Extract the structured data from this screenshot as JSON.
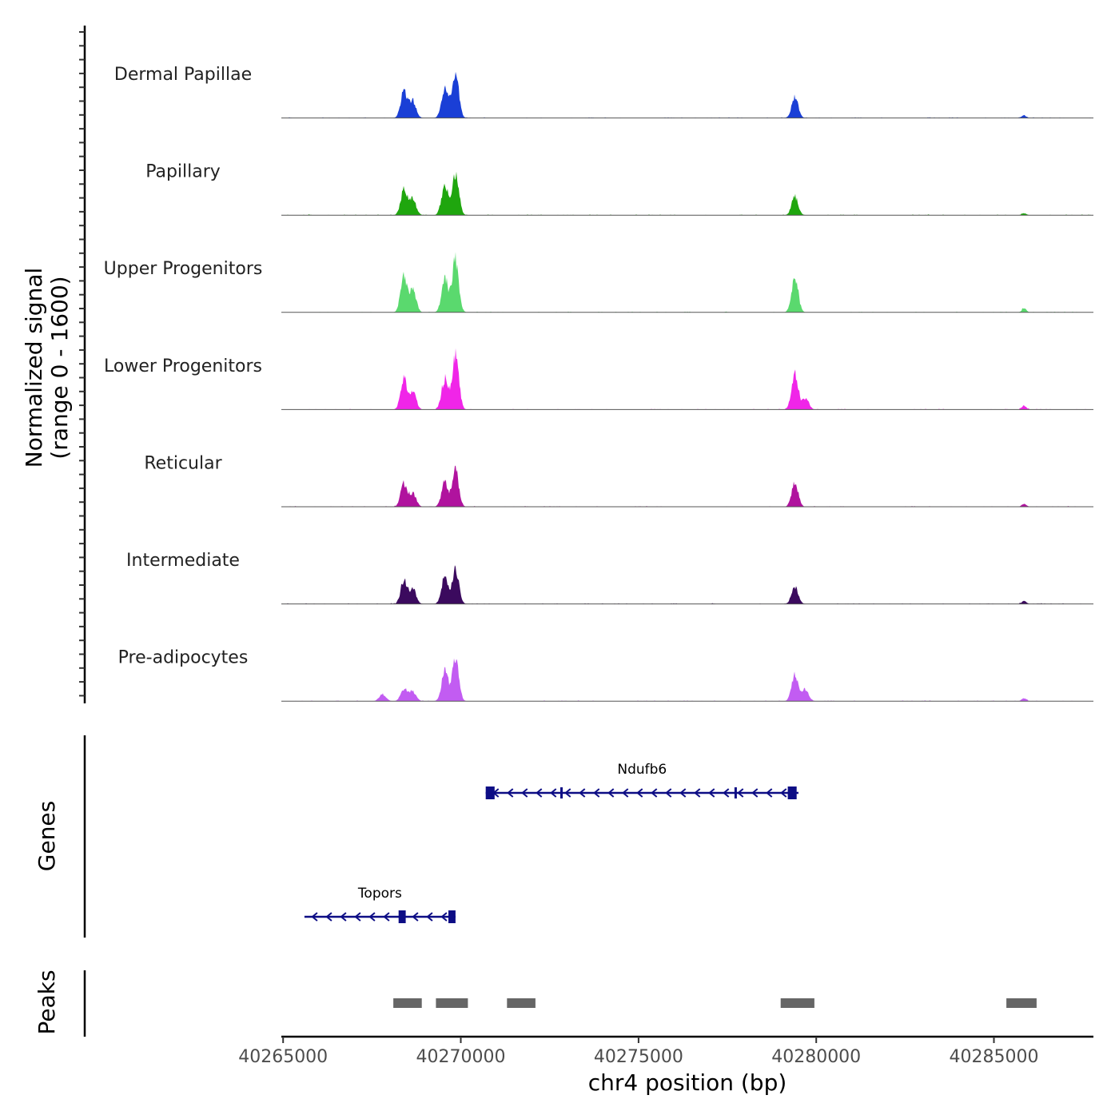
{
  "chart_data": {
    "type": "area",
    "chromosome": "chr4",
    "y_axis_title_line1": "Normalized signal",
    "y_axis_title_line2": "(range 0 - 1600)",
    "y_range": [
      0,
      1600
    ],
    "x_axis_title": "chr4 position (bp)",
    "xlim": [
      40264950,
      40287800
    ],
    "x_ticks": [
      {
        "value": 40265000,
        "label": "40265000"
      },
      {
        "value": 40270000,
        "label": "40270000"
      },
      {
        "value": 40275000,
        "label": "40275000"
      },
      {
        "value": 40280000,
        "label": "40280000"
      },
      {
        "value": 40285000,
        "label": "40285000"
      }
    ],
    "tracks": [
      {
        "name": "Dermal Papillae",
        "color": "#1a3fd6",
        "peaks": [
          {
            "pos": 40268400,
            "height": 600
          },
          {
            "pos": 40268650,
            "height": 380
          },
          {
            "pos": 40269550,
            "height": 700
          },
          {
            "pos": 40269850,
            "height": 1000
          },
          {
            "pos": 40279400,
            "height": 460
          },
          {
            "pos": 40285850,
            "height": 60
          }
        ]
      },
      {
        "name": "Papillary",
        "color": "#1fa60e",
        "peaks": [
          {
            "pos": 40268400,
            "height": 560
          },
          {
            "pos": 40268650,
            "height": 360
          },
          {
            "pos": 40269550,
            "height": 700
          },
          {
            "pos": 40269850,
            "height": 960
          },
          {
            "pos": 40279400,
            "height": 420
          },
          {
            "pos": 40285850,
            "height": 40
          }
        ]
      },
      {
        "name": "Upper Progenitors",
        "color": "#5ad96e",
        "peaks": [
          {
            "pos": 40268400,
            "height": 820
          },
          {
            "pos": 40268650,
            "height": 500
          },
          {
            "pos": 40269550,
            "height": 760
          },
          {
            "pos": 40269850,
            "height": 1200
          },
          {
            "pos": 40279400,
            "height": 800
          },
          {
            "pos": 40285850,
            "height": 90
          }
        ]
      },
      {
        "name": "Lower Progenitors",
        "color": "#f025e8",
        "peaks": [
          {
            "pos": 40268400,
            "height": 680
          },
          {
            "pos": 40268650,
            "height": 420
          },
          {
            "pos": 40269550,
            "height": 700
          },
          {
            "pos": 40269850,
            "height": 1280
          },
          {
            "pos": 40279400,
            "height": 820
          },
          {
            "pos": 40279700,
            "height": 260
          },
          {
            "pos": 40285850,
            "height": 90
          }
        ]
      },
      {
        "name": "Reticular",
        "color": "#b0139e",
        "peaks": [
          {
            "pos": 40268400,
            "height": 520
          },
          {
            "pos": 40268650,
            "height": 300
          },
          {
            "pos": 40269550,
            "height": 560
          },
          {
            "pos": 40269850,
            "height": 820
          },
          {
            "pos": 40279400,
            "height": 560
          },
          {
            "pos": 40285850,
            "height": 70
          }
        ]
      },
      {
        "name": "Intermediate",
        "color": "#3b0a5e",
        "peaks": [
          {
            "pos": 40268400,
            "height": 520
          },
          {
            "pos": 40268650,
            "height": 340
          },
          {
            "pos": 40269550,
            "height": 620
          },
          {
            "pos": 40269850,
            "height": 800
          },
          {
            "pos": 40279400,
            "height": 400
          },
          {
            "pos": 40285850,
            "height": 70
          }
        ]
      },
      {
        "name": "Pre-adipocytes",
        "color": "#c25cf2",
        "peaks": [
          {
            "pos": 40267800,
            "height": 160
          },
          {
            "pos": 40268400,
            "height": 280
          },
          {
            "pos": 40268650,
            "height": 220
          },
          {
            "pos": 40269550,
            "height": 680
          },
          {
            "pos": 40269850,
            "height": 980
          },
          {
            "pos": 40279400,
            "height": 620
          },
          {
            "pos": 40279700,
            "height": 260
          },
          {
            "pos": 40285850,
            "height": 70
          }
        ]
      }
    ],
    "genes_panel_label": "Genes",
    "genes": [
      {
        "name": "Ndufb6",
        "strand": "-",
        "start": 40270700,
        "end": 40279500,
        "row": 0,
        "exons": [
          {
            "start": 40270700,
            "end": 40270950
          },
          {
            "start": 40272800,
            "end": 40272850
          },
          {
            "start": 40277700,
            "end": 40277760
          },
          {
            "start": 40279200,
            "end": 40279450
          }
        ]
      },
      {
        "name": "Topors",
        "strand": "-",
        "start": 40265600,
        "end": 40269850,
        "row": 1,
        "exons": [
          {
            "start": 40268250,
            "end": 40268450
          },
          {
            "start": 40269650,
            "end": 40269850
          }
        ]
      }
    ],
    "peaks_panel_label": "Peaks",
    "peak_regions": [
      {
        "start": 40268100,
        "end": 40268900
      },
      {
        "start": 40269300,
        "end": 40270200
      },
      {
        "start": 40271300,
        "end": 40272100
      },
      {
        "start": 40279000,
        "end": 40279950
      },
      {
        "start": 40285350,
        "end": 40286200
      }
    ]
  }
}
